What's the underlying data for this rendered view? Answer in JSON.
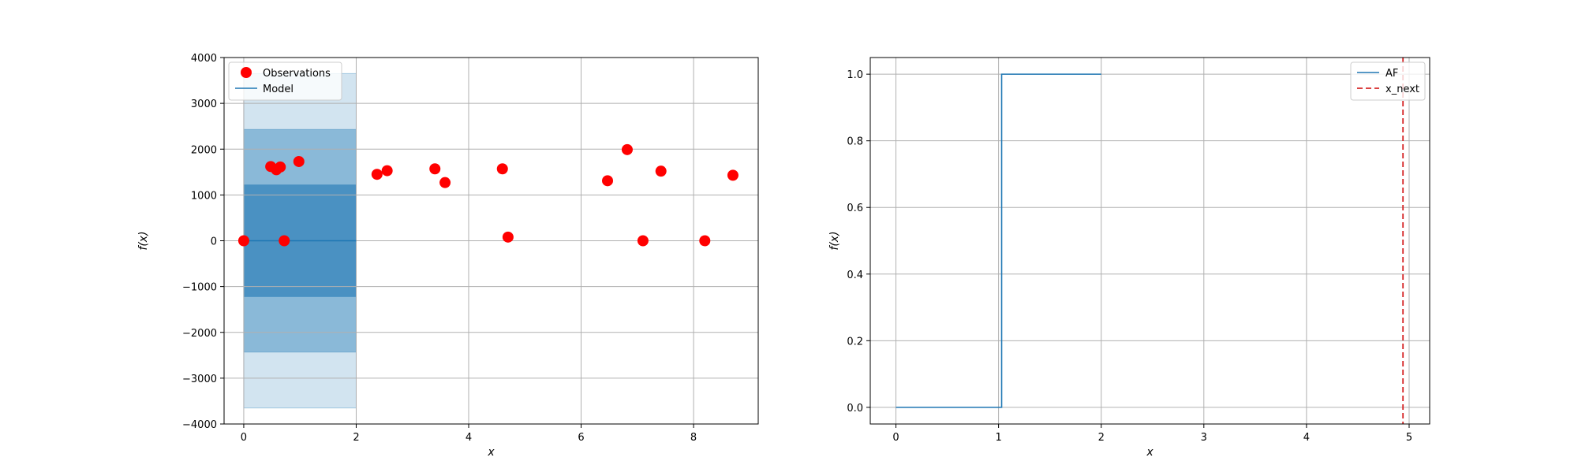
{
  "chart_data": [
    {
      "type": "scatter",
      "title": "",
      "xlabel": "x",
      "ylabel": "f(x)",
      "xlim": [
        -0.35,
        9.15
      ],
      "ylim": [
        -4000,
        4000
      ],
      "xticks": [
        0,
        2,
        4,
        6,
        8
      ],
      "yticks": [
        -4000,
        -3000,
        -2000,
        -1000,
        0,
        1000,
        2000,
        3000,
        4000
      ],
      "xtick_labels": [
        "0",
        "2",
        "4",
        "6",
        "8"
      ],
      "ytick_labels": [
        "−4000",
        "−3000",
        "−2000",
        "−1000",
        "0",
        "1000",
        "2000",
        "3000",
        "4000"
      ],
      "grid": true,
      "legend": {
        "placement": "top-left",
        "entries": [
          "Observations",
          "Model"
        ]
      },
      "series": [
        {
          "name": "Observations",
          "kind": "scatter",
          "color": "#ff0000",
          "points": [
            {
              "x": 0.0,
              "y": 0
            },
            {
              "x": 0.48,
              "y": 1620
            },
            {
              "x": 0.58,
              "y": 1550
            },
            {
              "x": 0.65,
              "y": 1610
            },
            {
              "x": 0.72,
              "y": 0
            },
            {
              "x": 0.98,
              "y": 1730
            },
            {
              "x": 2.37,
              "y": 1450
            },
            {
              "x": 2.55,
              "y": 1530
            },
            {
              "x": 3.4,
              "y": 1570
            },
            {
              "x": 3.58,
              "y": 1270
            },
            {
              "x": 4.6,
              "y": 1570
            },
            {
              "x": 4.7,
              "y": 80
            },
            {
              "x": 6.47,
              "y": 1310
            },
            {
              "x": 6.82,
              "y": 1990
            },
            {
              "x": 7.1,
              "y": 0
            },
            {
              "x": 7.42,
              "y": 1520
            },
            {
              "x": 8.2,
              "y": 0
            },
            {
              "x": 8.7,
              "y": 1430
            }
          ]
        },
        {
          "name": "Model",
          "kind": "line",
          "color": "#1f77b4",
          "x": [
            0,
            2
          ],
          "y": [
            0,
            0
          ]
        }
      ],
      "bands": [
        {
          "x": [
            0,
            2
          ],
          "lower": -3650,
          "upper": 3650,
          "color": "#1f77b4",
          "opacity": 0.2
        },
        {
          "x": [
            0,
            2
          ],
          "lower": -2430,
          "upper": 2430,
          "color": "#1f77b4",
          "opacity": 0.4
        },
        {
          "x": [
            0,
            2
          ],
          "lower": -1220,
          "upper": 1220,
          "color": "#1f77b4",
          "opacity": 0.6
        }
      ]
    },
    {
      "type": "line",
      "title": "",
      "xlabel": "x",
      "ylabel": "f(x)",
      "xlim": [
        -0.25,
        5.2
      ],
      "ylim": [
        -0.05,
        1.05
      ],
      "xticks": [
        0,
        1,
        2,
        3,
        4,
        5
      ],
      "yticks": [
        0.0,
        0.2,
        0.4,
        0.6,
        0.8,
        1.0
      ],
      "xtick_labels": [
        "0",
        "1",
        "2",
        "3",
        "4",
        "5"
      ],
      "ytick_labels": [
        "0.0",
        "0.2",
        "0.4",
        "0.6",
        "0.8",
        "1.0"
      ],
      "grid": true,
      "legend": {
        "placement": "top-right",
        "entries": [
          "AF",
          "x_next"
        ]
      },
      "series": [
        {
          "name": "AF",
          "kind": "step",
          "color": "#1f77b4",
          "x": [
            0,
            1.03,
            1.03,
            2.0
          ],
          "y": [
            0,
            0,
            1,
            1
          ]
        },
        {
          "name": "x_next",
          "kind": "vline",
          "color": "#d62728",
          "style": "dashed",
          "x": 4.94
        }
      ]
    }
  ]
}
